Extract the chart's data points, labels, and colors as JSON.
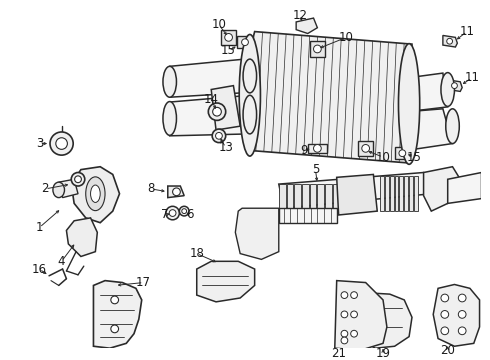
{
  "background_color": "#ffffff",
  "line_color": "#2a2a2a",
  "text_color": "#1a1a1a",
  "fig_width": 4.9,
  "fig_height": 3.6,
  "dpi": 100
}
